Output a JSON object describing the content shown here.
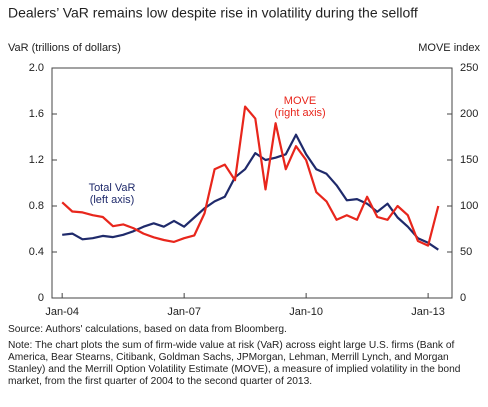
{
  "chart_data": {
    "type": "line",
    "title": "Dealers’ VaR remains low despite rise in volatility during the selloff",
    "y_label": "VaR (trillions of dollars)",
    "y2_label": "MOVE index",
    "categories": [
      "Jan-04",
      null,
      null,
      null,
      null,
      null,
      null,
      null,
      null,
      null,
      null,
      null,
      "Jan-07",
      null,
      null,
      null,
      null,
      null,
      null,
      null,
      null,
      null,
      null,
      null,
      "Jan-10",
      null,
      null,
      null,
      null,
      null,
      null,
      null,
      null,
      null,
      null,
      null,
      "Jan-13",
      null
    ],
    "series": [
      {
        "name": "Total VaR\n(left axis)",
        "color": "#1f2a6b",
        "values": [
          0.55,
          0.56,
          0.51,
          0.52,
          0.54,
          0.53,
          0.55,
          0.58,
          0.62,
          0.65,
          0.62,
          0.67,
          0.62,
          0.7,
          0.78,
          0.84,
          0.88,
          1.05,
          1.12,
          1.26,
          1.2,
          1.22,
          1.25,
          1.42,
          1.25,
          1.12,
          1.08,
          0.98,
          0.85,
          0.86,
          0.82,
          0.75,
          0.82,
          0.7,
          0.62,
          0.52,
          0.48,
          0.42
        ]
      },
      {
        "name": "MOVE\n(right axis)",
        "color": "#e8261c",
        "axis": "y2",
        "values": [
          104,
          94,
          93,
          90,
          88,
          78,
          80,
          76,
          70,
          66,
          63,
          61,
          65,
          68,
          92,
          140,
          145,
          128,
          208,
          195,
          118,
          190,
          140,
          165,
          150,
          115,
          105,
          85,
          90,
          85,
          110,
          88,
          85,
          100,
          90,
          62,
          57,
          100
        ]
      }
    ],
    "ylim": [
      0,
      2.0
    ],
    "yticks": [
      0,
      0.4,
      0.8,
      1.2,
      1.6,
      {
        "value": 2.0,
        "label": "2.0"
      }
    ],
    "y2lim": [
      0,
      250
    ],
    "y2ticks": [
      0,
      50,
      100,
      150,
      200,
      250
    ],
    "source": "Source: Authors' calculations, based on data from Bloomberg.",
    "note": "Note: The chart plots the sum of firm-wide value at risk (VaR) across eight large U.S. firms (Bank of America, Bear Stearns, Citibank, Goldman Sachs, JPMorgan, Lehman, Merrill Lynch, and Morgan Stanley) and the Merrill Option Volatility Estimate (MOVE), a measure of implied volatility in the bond market, from the first quarter of 2004 to the second quarter of 2013."
  }
}
